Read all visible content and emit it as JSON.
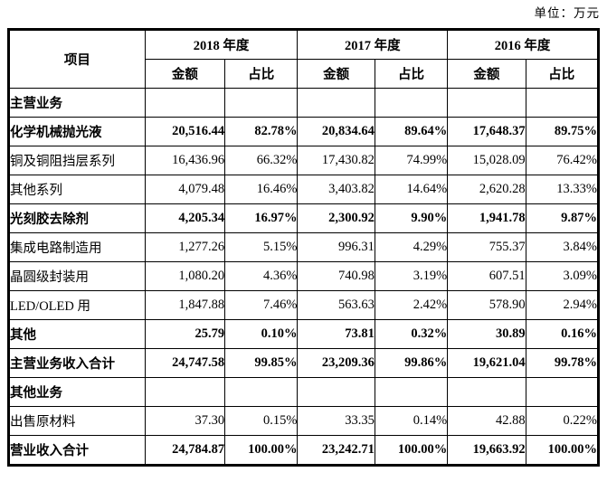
{
  "unit_label": "单位：万元",
  "table": {
    "header": {
      "item": "项目",
      "years": [
        "2018 年度",
        "2017 年度",
        "2016 年度"
      ],
      "amount": "金额",
      "ratio": "占比"
    },
    "rows": [
      {
        "label": "主营业务",
        "bold": true,
        "values": [
          "",
          "",
          "",
          "",
          "",
          ""
        ]
      },
      {
        "label": "化学机械抛光液",
        "bold": true,
        "values": [
          "20,516.44",
          "82.78%",
          "20,834.64",
          "89.64%",
          "17,648.37",
          "89.75%"
        ]
      },
      {
        "label": "铜及铜阻挡层系列",
        "bold": false,
        "values": [
          "16,436.96",
          "66.32%",
          "17,430.82",
          "74.99%",
          "15,028.09",
          "76.42%"
        ]
      },
      {
        "label": "其他系列",
        "bold": false,
        "values": [
          "4,079.48",
          "16.46%",
          "3,403.82",
          "14.64%",
          "2,620.28",
          "13.33%"
        ]
      },
      {
        "label": "光刻胶去除剂",
        "bold": true,
        "values": [
          "4,205.34",
          "16.97%",
          "2,300.92",
          "9.90%",
          "1,941.78",
          "9.87%"
        ]
      },
      {
        "label": "集成电路制造用",
        "bold": false,
        "values": [
          "1,277.26",
          "5.15%",
          "996.31",
          "4.29%",
          "755.37",
          "3.84%"
        ]
      },
      {
        "label": "晶圆级封装用",
        "bold": false,
        "values": [
          "1,080.20",
          "4.36%",
          "740.98",
          "3.19%",
          "607.51",
          "3.09%"
        ]
      },
      {
        "label": "LED/OLED 用",
        "bold": false,
        "values": [
          "1,847.88",
          "7.46%",
          "563.63",
          "2.42%",
          "578.90",
          "2.94%"
        ]
      },
      {
        "label": "其他",
        "bold": true,
        "values": [
          "25.79",
          "0.10%",
          "73.81",
          "0.32%",
          "30.89",
          "0.16%"
        ]
      },
      {
        "label": "主营业务收入合计",
        "bold": true,
        "values": [
          "24,747.58",
          "99.85%",
          "23,209.36",
          "99.86%",
          "19,621.04",
          "99.78%"
        ]
      },
      {
        "label": "其他业务",
        "bold": true,
        "values": [
          "",
          "",
          "",
          "",
          "",
          ""
        ]
      },
      {
        "label": "出售原材料",
        "bold": false,
        "values": [
          "37.30",
          "0.15%",
          "33.35",
          "0.14%",
          "42.88",
          "0.22%"
        ]
      },
      {
        "label": "营业收入合计",
        "bold": true,
        "values": [
          "24,784.87",
          "100.00%",
          "23,242.71",
          "100.00%",
          "19,663.92",
          "100.00%"
        ]
      }
    ]
  }
}
